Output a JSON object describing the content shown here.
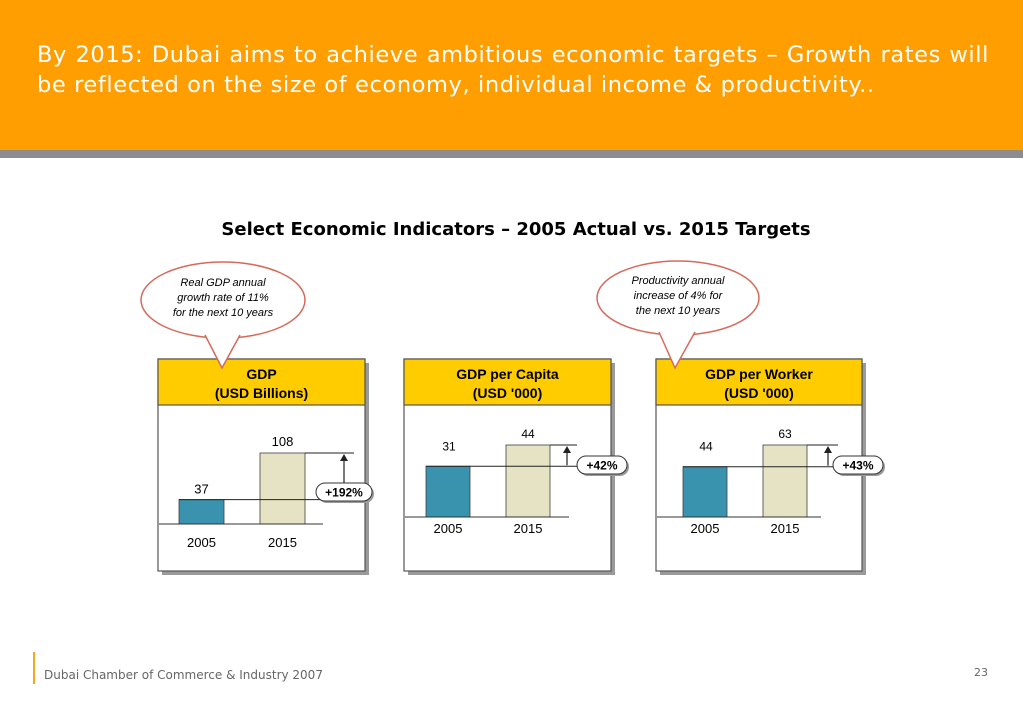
{
  "header": {
    "title": "By 2015: Dubai aims to achieve ambitious economic targets – Growth rates will be reflected on the size of economy, individual income & productivity.."
  },
  "subtitle": "Select Economic Indicators – 2005 Actual vs. 2015 Targets",
  "colors": {
    "header_orange": "#ff9e00",
    "header_grey": "#8c8c8c",
    "panel_title_yellow": "#ffcc00",
    "bar_2005": "#3a93ae",
    "bar_2015": "#e6e3c4",
    "callout_border": "#d56a5b"
  },
  "callouts": [
    {
      "lines": [
        "Real GDP annual",
        "growth rate of 11%",
        "for the next 10 years"
      ]
    },
    {
      "lines": [
        "Productivity annual",
        "increase of 4% for",
        "the next 10 years"
      ]
    }
  ],
  "chart_data": [
    {
      "type": "bar",
      "title": "GDP",
      "unit": "(USD Billions)",
      "categories": [
        "2005",
        "2015"
      ],
      "values": [
        37,
        108
      ],
      "value_labels": [
        "37",
        "108"
      ],
      "growth_label": "+192%"
    },
    {
      "type": "bar",
      "title": "GDP per Capita",
      "unit": "(USD '000)",
      "categories": [
        "2005",
        "2015"
      ],
      "values": [
        31,
        44
      ],
      "value_labels": [
        "31",
        "44"
      ],
      "growth_label": "+42%"
    },
    {
      "type": "bar",
      "title": "GDP per Worker",
      "unit": "(USD '000)",
      "categories": [
        "2005",
        "2015"
      ],
      "values": [
        44,
        63
      ],
      "value_labels": [
        "44",
        "63"
      ],
      "growth_label": "+43%"
    }
  ],
  "footer": {
    "text": "Dubai Chamber of Commerce & Industry 2007",
    "page_number": "23"
  }
}
